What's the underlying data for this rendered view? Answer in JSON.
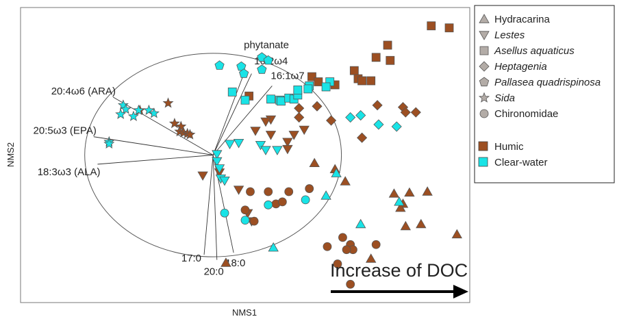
{
  "chart_data": {
    "type": "scatter",
    "xlabel": "NMS1",
    "ylabel": "NMS2",
    "xlim": [
      -1.5,
      2.0
    ],
    "ylim": [
      -1.45,
      1.45
    ],
    "grid": false,
    "legend_position": "right",
    "colors": {
      "Humic": "#9C4F22",
      "Clear-water": "#19E3E6"
    },
    "legend": {
      "taxa": [
        {
          "name": "Hydracarina",
          "shape": "triangle-up",
          "italic": false
        },
        {
          "name": "Lestes",
          "shape": "triangle-down",
          "italic": true
        },
        {
          "name": "Asellus aquaticus",
          "shape": "square",
          "italic": true
        },
        {
          "name": "Heptagenia",
          "shape": "diamond",
          "italic": true
        },
        {
          "name": "Pallasea quadrispinosa",
          "shape": "pentagon",
          "italic": true
        },
        {
          "name": "Sida",
          "shape": "star",
          "italic": true
        },
        {
          "name": "Chironomidae",
          "shape": "circle",
          "italic": false
        }
      ],
      "groups": [
        "Humic",
        "Clear-water"
      ]
    },
    "annotation": "Increase of DOC",
    "vectors": [
      {
        "label": "phytanate",
        "x": 0.24,
        "y": 0.8
      },
      {
        "label": "16:2ω4",
        "x": 0.3,
        "y": 0.8
      },
      {
        "label": "16:1ω7",
        "x": 0.46,
        "y": 0.68
      },
      {
        "label": "20:4ω6 (ARA)",
        "x": -0.78,
        "y": 0.57
      },
      {
        "label": "20:5ω3 (EPA)",
        "x": -0.93,
        "y": 0.18
      },
      {
        "label": "18:3ω3 (ALA)",
        "x": -0.9,
        "y": -0.09
      },
      {
        "label": "17:0",
        "x": -0.07,
        "y": -0.98
      },
      {
        "label": "20:0",
        "x": 0.03,
        "y": -1.03
      },
      {
        "label": "18:0",
        "x": 0.16,
        "y": -0.96
      }
    ],
    "series": [
      {
        "taxon": "Hydracarina",
        "group": "Humic",
        "shape": "triangle-up",
        "x": [
          0.1,
          0.79,
          0.95,
          1.03,
          1.53,
          1.67,
          1.41,
          1.48,
          1.46,
          1.5,
          1.62,
          1.9,
          1.23
        ],
        "y": [
          -1.06,
          -0.08,
          -0.14,
          -0.26,
          -0.37,
          -0.36,
          -0.38,
          -0.48,
          -0.52,
          -0.7,
          -0.68,
          -0.78,
          -1.02
        ]
      },
      {
        "taxon": "Hydracarina",
        "group": "Clear-water",
        "shape": "triangle-up",
        "x": [
          0.96,
          0.88,
          1.15,
          1.45,
          0.47
        ],
        "y": [
          -0.18,
          -0.4,
          -0.68,
          -0.46,
          -0.91
        ]
      },
      {
        "taxon": "Lestes",
        "group": "Humic",
        "shape": "triangle-down",
        "x": [
          0.45,
          0.41,
          0.33,
          0.45,
          0.63,
          0.71,
          0.58,
          0.58,
          -0.08,
          0.05,
          0.2,
          0.27,
          0.3
        ],
        "y": [
          0.35,
          0.33,
          0.24,
          0.2,
          0.2,
          0.25,
          0.13,
          0.06,
          -0.2,
          -0.17,
          -0.34,
          -0.57,
          -0.65
        ]
      },
      {
        "taxon": "Lestes",
        "group": "Clear-water",
        "shape": "triangle-down",
        "x": [
          0.13,
          0.2,
          0.37,
          0.41,
          0.5,
          0.03,
          0.03,
          0.05,
          0.06,
          0.09
        ],
        "y": [
          0.11,
          0.12,
          0.1,
          0.05,
          0.05,
          0.01,
          -0.06,
          -0.13,
          -0.23,
          -0.25
        ]
      },
      {
        "taxon": "Asellus aquaticus",
        "group": "Humic",
        "shape": "square",
        "x": [
          1.7,
          1.84,
          1.36,
          1.38,
          1.27,
          1.1,
          1.13,
          1.16,
          1.23,
          0.77,
          0.82,
          0.95,
          0.28
        ],
        "y": [
          1.27,
          1.25,
          1.08,
          0.93,
          0.96,
          0.83,
          0.75,
          0.73,
          0.73,
          0.77,
          0.72,
          0.69,
          0.58
        ]
      },
      {
        "taxon": "Asellus aquaticus",
        "group": "Clear-water",
        "shape": "square",
        "x": [
          0.15,
          0.25,
          0.45,
          0.52,
          0.53,
          0.59,
          0.63,
          0.66,
          0.66,
          0.75,
          0.74,
          0.91,
          0.88
        ],
        "y": [
          0.62,
          0.54,
          0.55,
          0.54,
          0.53,
          0.56,
          0.55,
          0.59,
          0.64,
          0.68,
          0.65,
          0.72,
          0.67
        ]
      },
      {
        "taxon": "Heptagenia",
        "group": "Humic",
        "shape": "diamond",
        "x": [
          0.81,
          0.67,
          0.92,
          1.16,
          0.67,
          1.28,
          1.48,
          1.5,
          1.58
        ],
        "y": [
          0.48,
          0.37,
          0.34,
          0.17,
          0.46,
          0.49,
          0.47,
          0.42,
          0.42
        ]
      },
      {
        "taxon": "Heptagenia",
        "group": "Clear-water",
        "shape": "diamond",
        "x": [
          1.07,
          1.15,
          1.29,
          1.43
        ],
        "y": [
          0.37,
          0.39,
          0.3,
          0.28
        ]
      },
      {
        "taxon": "Pallasea quadrispinosa",
        "group": "Clear-water",
        "shape": "pentagon",
        "x": [
          0.05,
          0.38,
          0.43,
          0.22,
          0.24,
          0.38
        ],
        "y": [
          0.88,
          0.96,
          0.93,
          0.87,
          0.8,
          0.84
        ]
      },
      {
        "taxon": "Sida",
        "group": "Humic",
        "shape": "star",
        "x": [
          -0.35,
          -0.57,
          -0.3,
          -0.25,
          -0.26,
          -0.23,
          -0.2,
          -0.18
        ],
        "y": [
          0.51,
          0.44,
          0.31,
          0.28,
          0.23,
          0.22,
          0.21,
          0.2
        ]
      },
      {
        "taxon": "Sida",
        "group": "Clear-water",
        "shape": "star",
        "x": [
          -0.7,
          -0.68,
          -0.72,
          -0.62,
          -0.58,
          -0.5,
          -0.46,
          -0.81,
          -0.81
        ],
        "y": [
          0.49,
          0.45,
          0.4,
          0.38,
          0.44,
          0.44,
          0.41,
          0.13,
          0.11
        ]
      },
      {
        "taxon": "Chironomidae",
        "group": "Humic",
        "shape": "circle",
        "x": [
          0.29,
          0.43,
          0.59,
          0.49,
          0.75,
          0.54,
          0.25,
          0.32,
          1.01,
          1.07,
          1.09,
          1.27,
          0.89,
          1.04,
          0.97,
          1.07
        ],
        "y": [
          -0.36,
          -0.36,
          -0.36,
          -0.48,
          -0.33,
          -0.46,
          -0.54,
          -0.65,
          -0.81,
          -0.88,
          -0.93,
          -0.88,
          -0.9,
          -0.93,
          -1.07,
          -1.27
        ]
      },
      {
        "taxon": "Chironomidae",
        "group": "Clear-water",
        "shape": "circle",
        "x": [
          0.43,
          0.72,
          0.09,
          0.25
        ],
        "y": [
          -0.49,
          -0.44,
          -0.57,
          -0.64
        ]
      }
    ]
  }
}
